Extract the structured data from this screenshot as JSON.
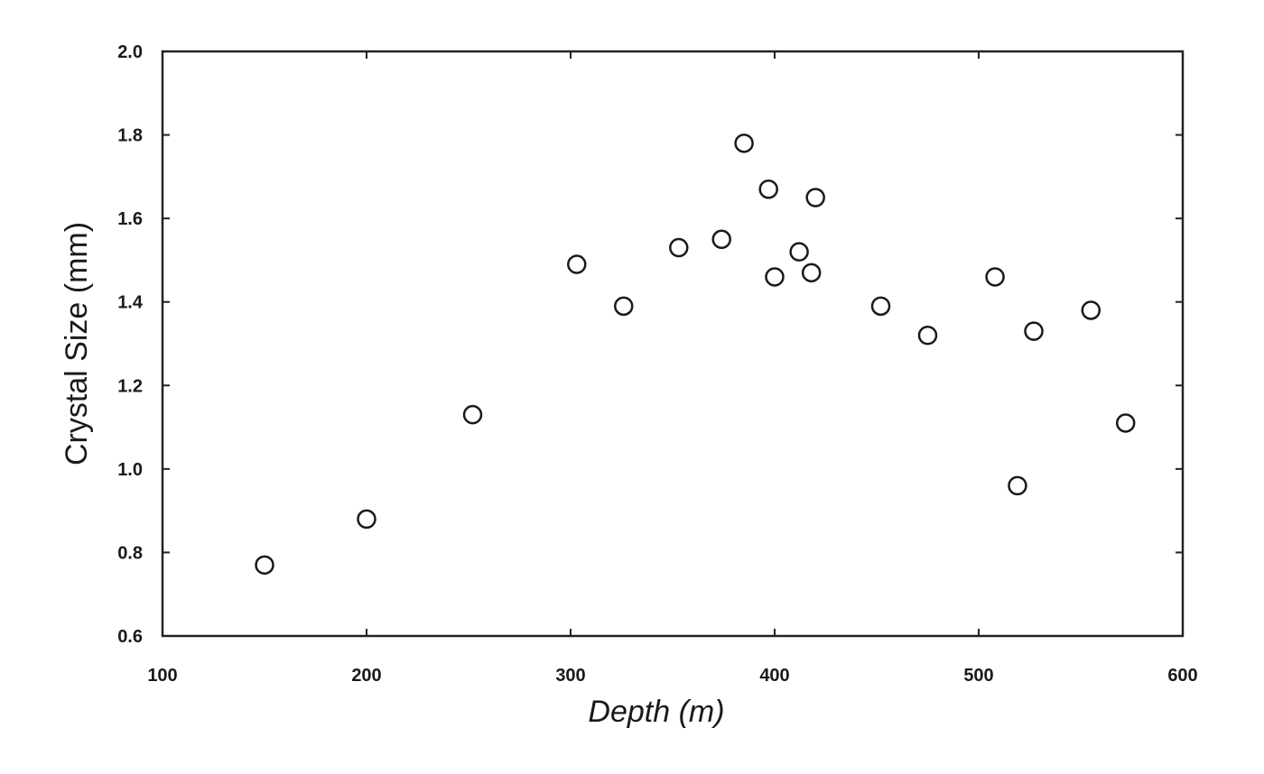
{
  "chart_data": {
    "type": "scatter",
    "title": "",
    "xlabel": "Depth (m)",
    "ylabel": "Crystal Size (mm)",
    "xlim": [
      100,
      600
    ],
    "ylim": [
      0.6,
      2.0
    ],
    "xticks": [
      "100",
      "200",
      "300",
      "400",
      "500",
      "600"
    ],
    "yticks": [
      "0.6",
      "0.8",
      "1.0",
      "1.2",
      "1.4",
      "1.6",
      "1.8",
      "2.0"
    ],
    "marker": "open-circle",
    "grid": false,
    "legend": "none",
    "points": [
      {
        "x": 150,
        "y": 0.77
      },
      {
        "x": 200,
        "y": 0.88
      },
      {
        "x": 252,
        "y": 1.13
      },
      {
        "x": 303,
        "y": 1.49
      },
      {
        "x": 326,
        "y": 1.39
      },
      {
        "x": 353,
        "y": 1.53
      },
      {
        "x": 374,
        "y": 1.55
      },
      {
        "x": 385,
        "y": 1.78
      },
      {
        "x": 397,
        "y": 1.67
      },
      {
        "x": 400,
        "y": 1.46
      },
      {
        "x": 412,
        "y": 1.52
      },
      {
        "x": 418,
        "y": 1.47
      },
      {
        "x": 420,
        "y": 1.65
      },
      {
        "x": 452,
        "y": 1.39
      },
      {
        "x": 475,
        "y": 1.32
      },
      {
        "x": 508,
        "y": 1.46
      },
      {
        "x": 519,
        "y": 0.96
      },
      {
        "x": 527,
        "y": 1.33
      },
      {
        "x": 555,
        "y": 1.38
      },
      {
        "x": 572,
        "y": 1.11
      }
    ]
  }
}
